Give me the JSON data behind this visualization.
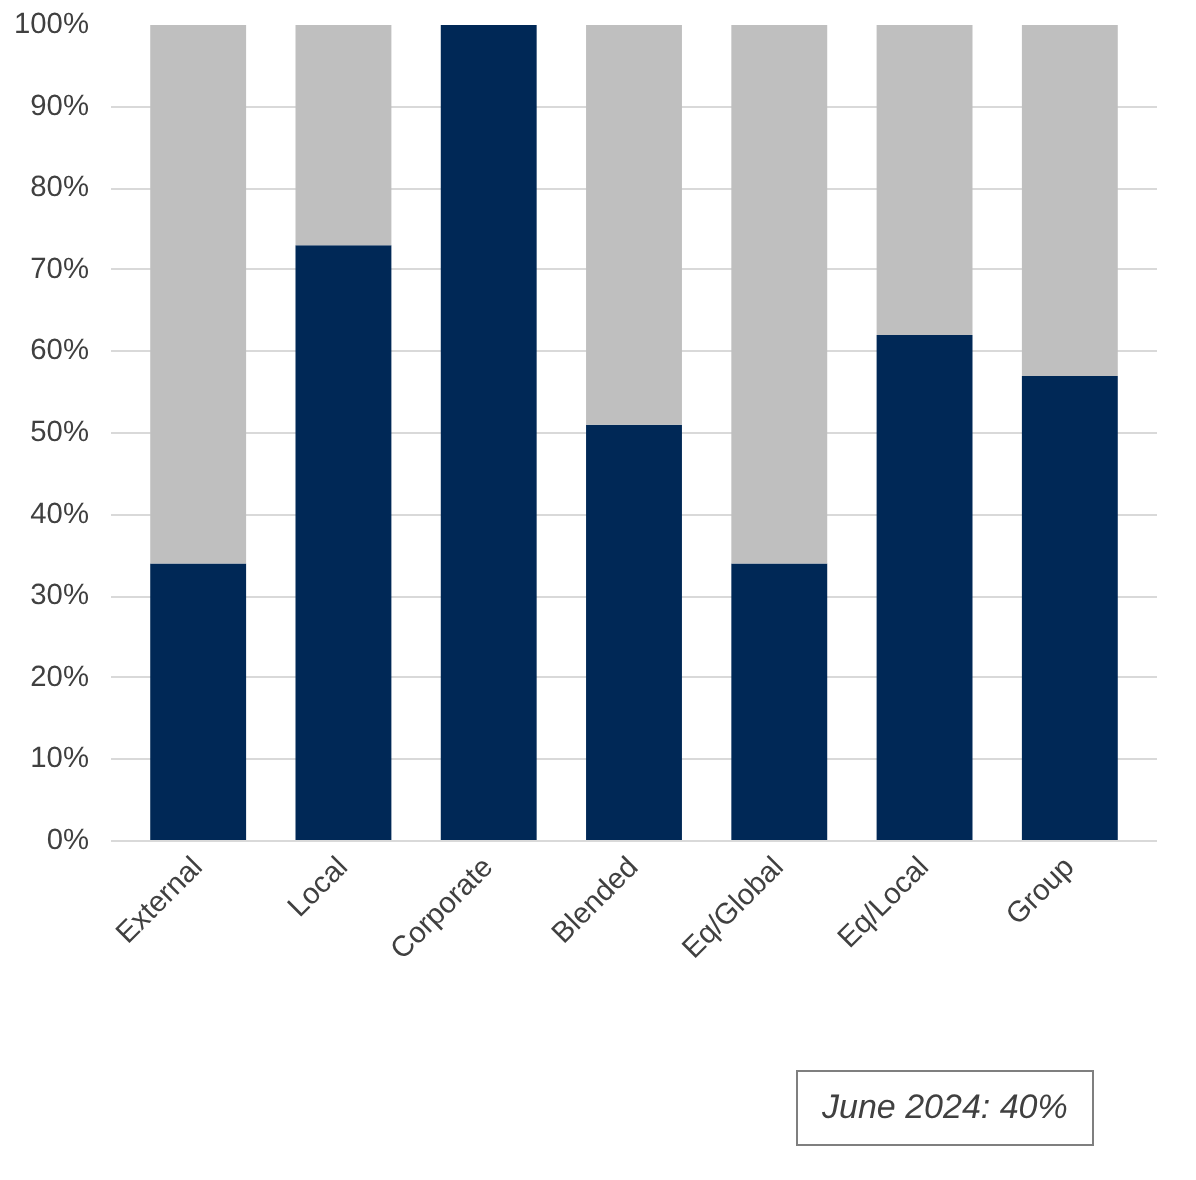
{
  "chart_data": {
    "type": "bar",
    "stacked": true,
    "categories": [
      "External",
      "Local",
      "Corporate",
      "Blended",
      "Eq/Global",
      "Eq/Local",
      "Group"
    ],
    "series": [
      {
        "color": "#002856",
        "values": [
          34,
          73,
          100,
          51,
          34,
          62,
          57
        ]
      },
      {
        "color": "#bfbfbf",
        "values": [
          66,
          27,
          0,
          49,
          66,
          38,
          43
        ]
      }
    ],
    "ylim": [
      0,
      100
    ],
    "yticks": [
      {
        "value": 0,
        "label": "0%"
      },
      {
        "value": 10,
        "label": "10%"
      },
      {
        "value": 20,
        "label": "20%"
      },
      {
        "value": 30,
        "label": "30%"
      },
      {
        "value": 40,
        "label": "40%"
      },
      {
        "value": 50,
        "label": "50%"
      },
      {
        "value": 60,
        "label": "60%"
      },
      {
        "value": 70,
        "label": "70%"
      },
      {
        "value": 80,
        "label": "80%"
      },
      {
        "value": 90,
        "label": "90%"
      },
      {
        "value": 100,
        "label": "100%"
      }
    ],
    "grid": "y",
    "annotations": [
      "June 2024: 40%"
    ]
  }
}
